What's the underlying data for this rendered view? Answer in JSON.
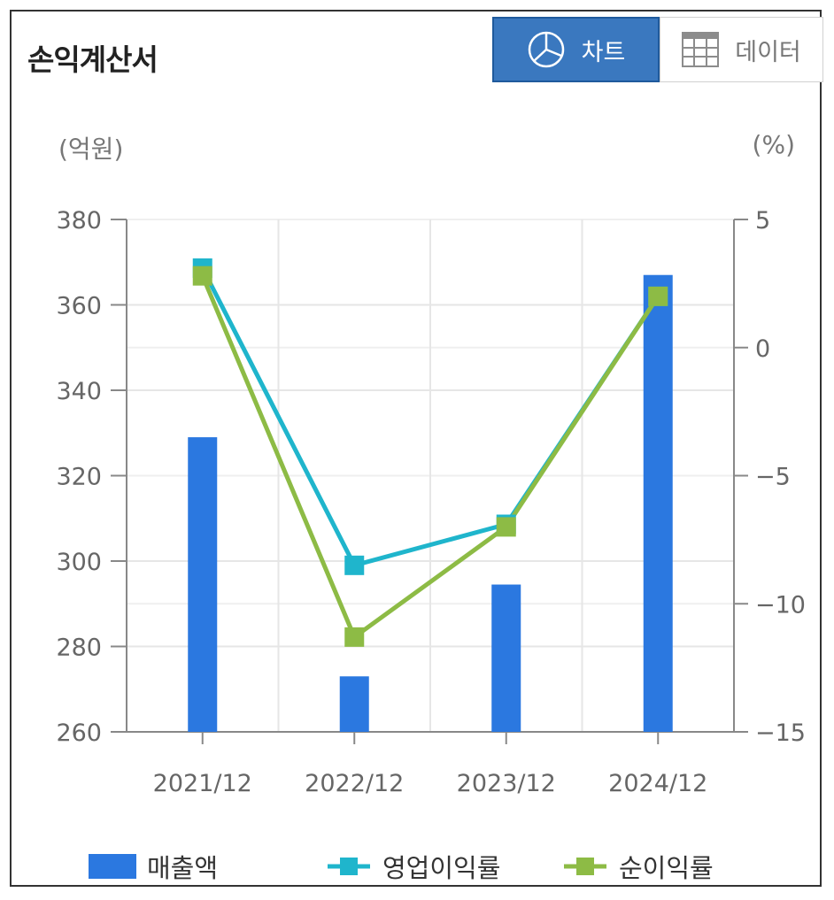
{
  "title": "손익계산서",
  "toggle": {
    "chart_label": "차트",
    "data_label": "데이터",
    "selected": "차트"
  },
  "units": {
    "left": "(억원)",
    "right": "(%)"
  },
  "colors": {
    "bar": "#2b78e0",
    "operating": "#1fb5cc",
    "net": "#8dbb45",
    "toggle_active": "#3a78bf"
  },
  "chart_data": {
    "type": "bar",
    "categories": [
      "2021/12",
      "2022/12",
      "2023/12",
      "2024/12"
    ],
    "series": [
      {
        "name": "매출액",
        "type": "bar",
        "axis": "left",
        "values": [
          329,
          273,
          294.5,
          367
        ]
      },
      {
        "name": "영업이익률",
        "type": "line",
        "axis": "right",
        "values": [
          3.1,
          -8.5,
          -6.9,
          2.0
        ]
      },
      {
        "name": "순이익률",
        "type": "line",
        "axis": "right",
        "values": [
          2.8,
          -11.3,
          -7.0,
          2.0
        ]
      }
    ],
    "y_left": {
      "label": "(억원)",
      "ylim": [
        260,
        380
      ],
      "ticks": [
        260,
        280,
        300,
        320,
        340,
        360,
        380
      ]
    },
    "y_right": {
      "label": "(%)",
      "ylim": [
        -15,
        5
      ],
      "ticks": [
        "5",
        "0",
        "−5",
        "−10",
        "−15"
      ]
    },
    "grid": true,
    "legend": "bottom"
  }
}
